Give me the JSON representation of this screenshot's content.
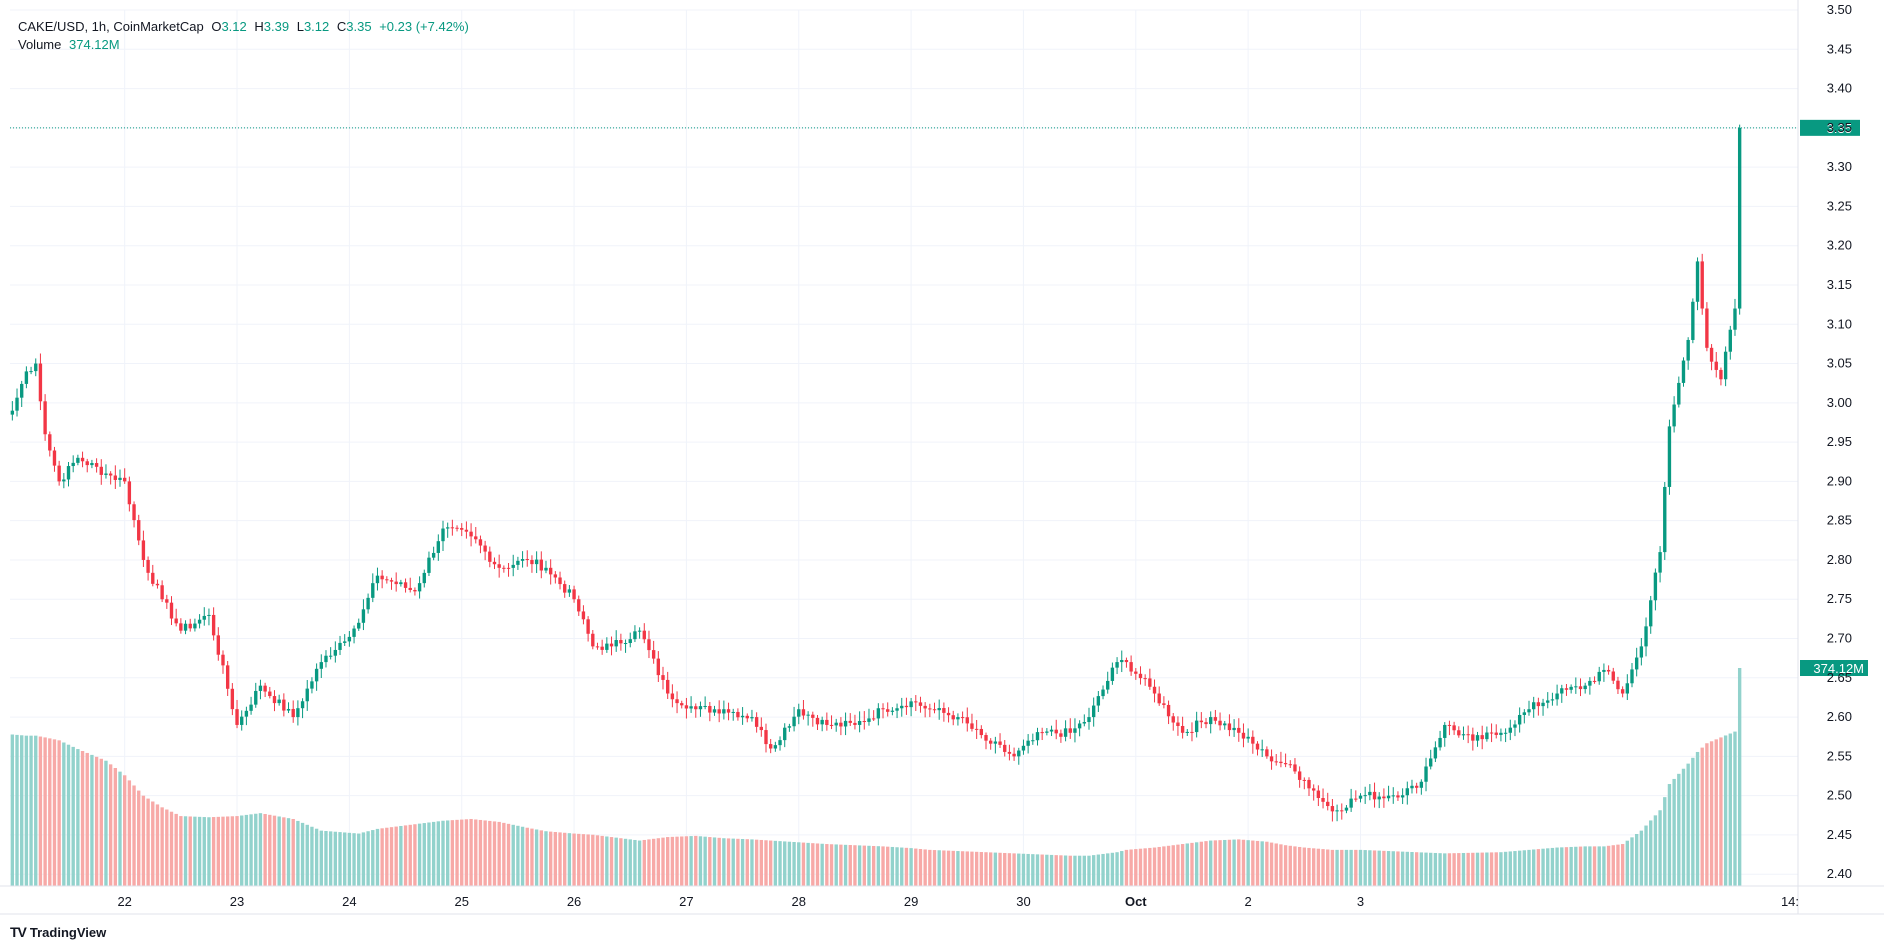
{
  "legend": {
    "symbol": "CAKE/USD, 1h, CoinMarketCap",
    "open_label": "O",
    "open": "3.12",
    "high_label": "H",
    "high": "3.39",
    "low_label": "L",
    "low": "3.12",
    "close_label": "C",
    "close": "3.35",
    "change": "+0.23 (+7.42%)",
    "volume_label": "Volume",
    "volume": "374.12M"
  },
  "brand": {
    "name": "TradingView",
    "logo": "TV"
  },
  "colors": {
    "up": "#089981",
    "down": "#f23645",
    "up_vol": "#92d2cc",
    "down_vol": "#f7a9a7",
    "grid": "#f0f3fa",
    "price_line": "#089981"
  },
  "chart_data": {
    "type": "candlestick",
    "title": "CAKE/USD, 1h, CoinMarketCap",
    "price_axis": {
      "ylim": [
        2.385,
        3.5
      ],
      "ticks": [
        "3.50",
        "3.45",
        "3.40",
        "3.35",
        "3.30",
        "3.25",
        "3.20",
        "3.15",
        "3.10",
        "3.05",
        "3.00",
        "2.95",
        "2.90",
        "2.85",
        "2.80",
        "2.75",
        "2.70",
        "2.65",
        "2.60",
        "2.55",
        "2.50",
        "2.45",
        "2.40"
      ]
    },
    "time_axis": {
      "ticks": [
        "22",
        "23",
        "24",
        "25",
        "26",
        "27",
        "28",
        "29",
        "30",
        "Oct",
        "2",
        "3",
        "14:"
      ]
    },
    "last_price_label": "3.35",
    "last_volume_label": "374.12M",
    "volume_axis_max_m": 374.12,
    "anchors": [
      [
        0,
        2.99,
        260
      ],
      [
        3,
        3.04,
        258
      ],
      [
        5,
        3.05,
        258
      ],
      [
        7,
        2.96,
        255
      ],
      [
        10,
        2.9,
        250
      ],
      [
        14,
        2.93,
        235
      ],
      [
        20,
        2.91,
        215
      ],
      [
        24,
        2.9,
        190
      ],
      [
        28,
        2.8,
        155
      ],
      [
        32,
        2.75,
        135
      ],
      [
        36,
        2.71,
        120
      ],
      [
        42,
        2.73,
        118
      ],
      [
        48,
        2.59,
        120
      ],
      [
        53,
        2.64,
        125
      ],
      [
        60,
        2.6,
        115
      ],
      [
        66,
        2.67,
        95
      ],
      [
        74,
        2.72,
        90
      ],
      [
        78,
        2.78,
        98
      ],
      [
        86,
        2.76,
        106
      ],
      [
        92,
        2.84,
        112
      ],
      [
        98,
        2.83,
        115
      ],
      [
        104,
        2.79,
        110
      ],
      [
        110,
        2.8,
        100
      ],
      [
        114,
        2.79,
        94
      ],
      [
        120,
        2.75,
        90
      ],
      [
        124,
        2.69,
        88
      ],
      [
        128,
        2.69,
        84
      ],
      [
        134,
        2.71,
        78
      ],
      [
        140,
        2.63,
        84
      ],
      [
        146,
        2.61,
        86
      ],
      [
        152,
        2.61,
        82
      ],
      [
        158,
        2.6,
        80
      ],
      [
        162,
        2.56,
        78
      ],
      [
        168,
        2.61,
        75
      ],
      [
        174,
        2.59,
        72
      ],
      [
        180,
        2.59,
        70
      ],
      [
        186,
        2.61,
        68
      ],
      [
        192,
        2.62,
        65
      ],
      [
        196,
        2.61,
        62
      ],
      [
        202,
        2.6,
        60
      ],
      [
        208,
        2.57,
        58
      ],
      [
        214,
        2.55,
        56
      ],
      [
        220,
        2.58,
        54
      ],
      [
        226,
        2.58,
        52
      ],
      [
        230,
        2.6,
        52
      ],
      [
        236,
        2.67,
        58
      ],
      [
        238,
        2.67,
        62
      ],
      [
        244,
        2.63,
        66
      ],
      [
        250,
        2.58,
        72
      ],
      [
        256,
        2.6,
        78
      ],
      [
        262,
        2.58,
        80
      ],
      [
        268,
        2.55,
        76
      ],
      [
        272,
        2.54,
        70
      ],
      [
        276,
        2.52,
        66
      ],
      [
        282,
        2.48,
        62
      ],
      [
        288,
        2.5,
        62
      ],
      [
        294,
        2.5,
        60
      ],
      [
        300,
        2.51,
        58
      ],
      [
        306,
        2.59,
        56
      ],
      [
        312,
        2.57,
        57
      ],
      [
        318,
        2.58,
        58
      ],
      [
        324,
        2.61,
        62
      ],
      [
        330,
        2.63,
        66
      ],
      [
        336,
        2.64,
        68
      ],
      [
        340,
        2.66,
        68
      ],
      [
        344,
        2.63,
        72
      ],
      [
        348,
        2.69,
        95
      ],
      [
        352,
        2.81,
        130
      ],
      [
        354,
        2.97,
        175
      ],
      [
        358,
        3.08,
        210
      ],
      [
        360,
        3.18,
        230
      ],
      [
        362,
        3.07,
        245
      ],
      [
        365,
        3.03,
        255
      ],
      [
        368,
        3.12,
        265
      ],
      [
        369,
        3.35,
        374.12
      ]
    ]
  }
}
